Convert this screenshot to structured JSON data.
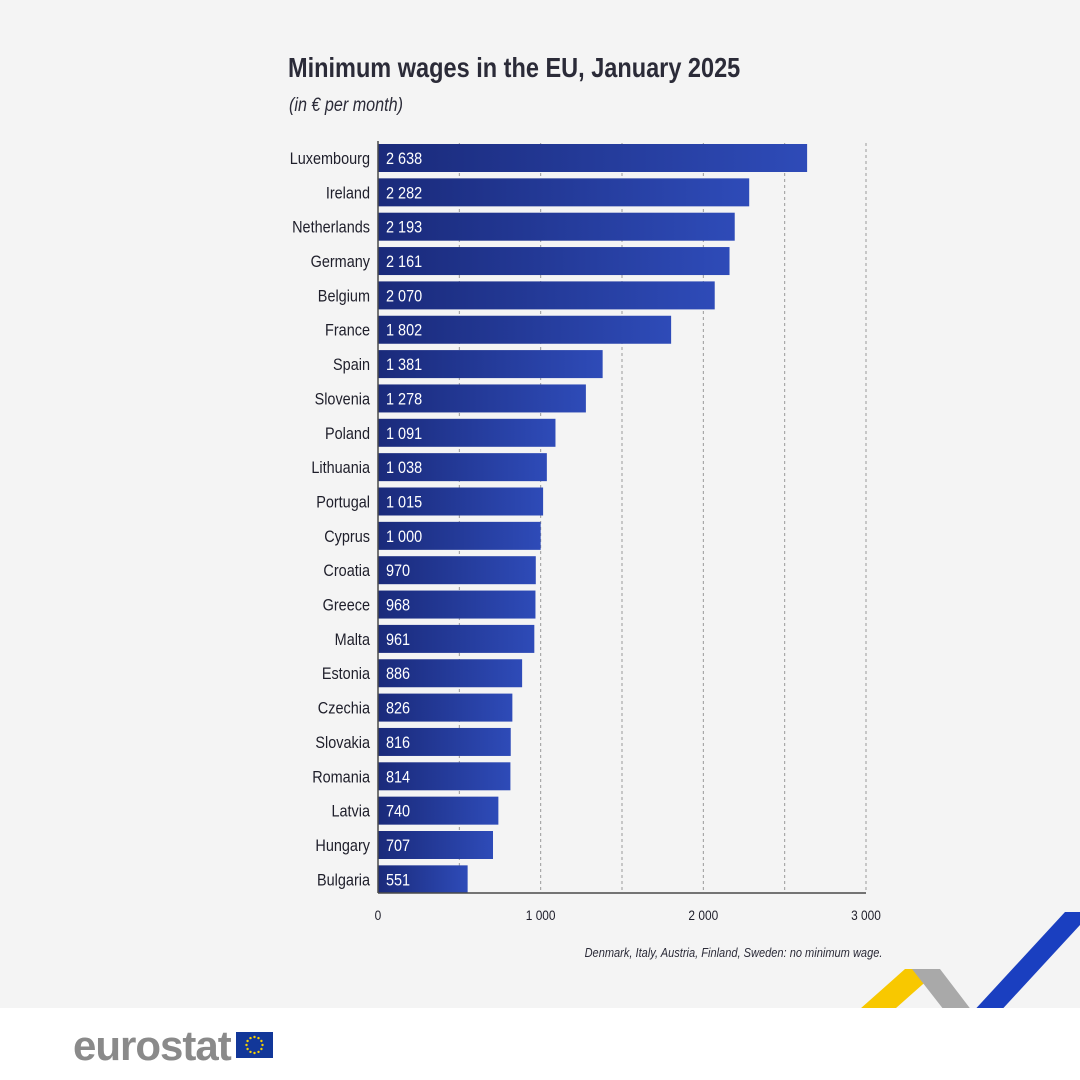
{
  "chart_data": {
    "type": "bar",
    "orientation": "horizontal",
    "title": "Minimum wages in the EU, January 2025",
    "subtitle": "(in € per month)",
    "categories": [
      "Luxembourg",
      "Ireland",
      "Netherlands",
      "Germany",
      "Belgium",
      "France",
      "Spain",
      "Slovenia",
      "Poland",
      "Lithuania",
      "Portugal",
      "Cyprus",
      "Croatia",
      "Greece",
      "Malta",
      "Estonia",
      "Czechia",
      "Slovakia",
      "Romania",
      "Latvia",
      "Hungary",
      "Bulgaria"
    ],
    "values": [
      2638,
      2282,
      2193,
      2161,
      2070,
      1802,
      1381,
      1278,
      1091,
      1038,
      1015,
      1000,
      970,
      968,
      961,
      886,
      826,
      816,
      814,
      740,
      707,
      551
    ],
    "value_labels": [
      "2 638",
      "2 282",
      "2 193",
      "2 161",
      "2 070",
      "1 802",
      "1 381",
      "1 278",
      "1 091",
      "1 038",
      "1 015",
      "1 000",
      "970",
      "968",
      "961",
      "886",
      "826",
      "816",
      "814",
      "740",
      "707",
      "551"
    ],
    "x_ticks": [
      0,
      1000,
      2000,
      3000
    ],
    "x_tick_labels": [
      "0",
      "1 000",
      "2 000",
      "3 000"
    ],
    "xlim": [
      0,
      3000
    ],
    "xlabel": "",
    "ylabel": "",
    "grid": "vertical dashed",
    "footnote": "Denmark, Italy, Austria, Finland, Sweden: no minimum wage.",
    "bar_color_start": "#1a2a7a",
    "bar_color_end": "#2e4bb8"
  },
  "brand": {
    "wordmark": "eurostat",
    "flag_icon": "eu-flag-icon"
  },
  "colors": {
    "background": "#f4f4f4",
    "footer_background": "#ffffff",
    "stripe_yellow": "#f8c800",
    "stripe_grey": "#a9a9a9",
    "stripe_blue": "#1a3fc0"
  }
}
